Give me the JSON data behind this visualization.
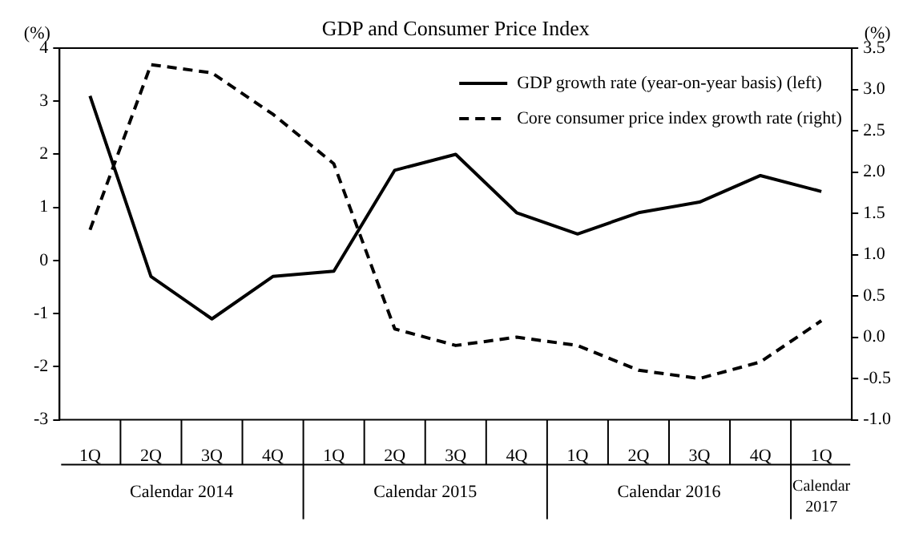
{
  "chart_data": {
    "type": "line",
    "title": "GDP and Consumer Price Index",
    "ylabel": "(%)",
    "y2label": "(%)",
    "categories": [
      "1Q",
      "2Q",
      "3Q",
      "4Q",
      "1Q",
      "2Q",
      "3Q",
      "4Q",
      "1Q",
      "2Q",
      "3Q",
      "4Q",
      "1Q"
    ],
    "annotations": [
      "Calendar 2014",
      "Calendar 2015",
      "Calendar 2016",
      "Calendar 2017"
    ],
    "series": [
      {
        "name": "GDP growth rate (year-on-year basis) (left)",
        "color": "#000000",
        "line_style": "solid",
        "values": [
          3.1,
          -0.3,
          -1.1,
          -0.3,
          -0.2,
          1.7,
          2.0,
          0.9,
          0.5,
          0.9,
          1.1,
          1.6,
          1.3
        ]
      },
      {
        "name": "Core consumer price index growth rate (right)",
        "color": "#000000",
        "line_style": "dashed",
        "axis": "y2",
        "values": [
          1.3,
          3.3,
          3.2,
          2.7,
          2.1,
          0.1,
          -0.1,
          0.0,
          -0.1,
          -0.4,
          -0.5,
          -0.3,
          0.2
        ]
      }
    ],
    "ylim": [
      -3,
      4
    ],
    "yticks": [
      -3,
      -2,
      -1,
      0,
      1,
      2,
      3,
      4
    ],
    "y2lim": [
      -1.0,
      3.5
    ],
    "y2ticks": [
      {
        "value": -1,
        "label": "-1.0"
      },
      {
        "value": -0.5,
        "label": "-0.5"
      },
      {
        "value": 0,
        "label": "0.0"
      },
      {
        "value": 0.5,
        "label": "0.5"
      },
      {
        "value": 1,
        "label": "1.0"
      },
      {
        "value": 1.5,
        "label": "1.5"
      },
      {
        "value": 2,
        "label": "2.0"
      },
      {
        "value": 2.5,
        "label": "2.5"
      },
      {
        "value": 3,
        "label": "3.0"
      },
      {
        "value": 3.5,
        "label": "3.5"
      }
    ],
    "grid": false,
    "legend": "top right",
    "marker": "none"
  }
}
